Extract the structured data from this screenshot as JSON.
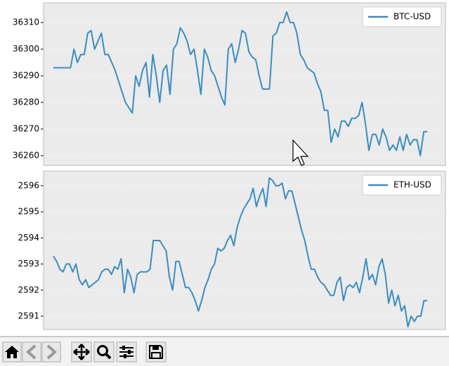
{
  "chart_data": [
    {
      "type": "line",
      "legend": "upper right",
      "ylim": [
        36256.3,
        36317.4
      ],
      "yticks": [
        36260,
        36270,
        36280,
        36290,
        36300,
        36310
      ],
      "series": [
        {
          "name": "BTC-USD",
          "color": "#3a8dc1",
          "values": [
            36293,
            36293,
            36293,
            36293,
            36293,
            36293,
            36300,
            36295,
            36298,
            36298,
            36306,
            36307,
            36300,
            36303,
            36306,
            36298,
            36298,
            36295,
            36292,
            36288,
            36284,
            36280,
            36278,
            36276,
            36290,
            36286,
            36292,
            36295,
            36282,
            36298,
            36290,
            36280,
            36292,
            36294,
            36283,
            36300,
            36302,
            36308,
            36306,
            36303,
            36298,
            36300,
            36292,
            36283,
            36300,
            36297,
            36292,
            36290,
            36286,
            36282,
            36279,
            36300,
            36302,
            36295,
            36300,
            36307,
            36306,
            36299,
            36297,
            36296,
            36290,
            36285,
            36285,
            36285,
            36305,
            36306,
            36310,
            36310,
            36314,
            36310,
            36310,
            36306,
            36298,
            36296,
            36293,
            36292,
            36291,
            36287,
            36284,
            36277,
            36277,
            36265,
            36270,
            36267,
            36273,
            36273,
            36271,
            36274,
            36274,
            36275,
            36280,
            36272,
            36262,
            36268,
            36268,
            36264,
            36270,
            36267,
            36262,
            36264,
            36262,
            36267,
            36262,
            36268,
            36264,
            36266,
            36266,
            36260,
            36269,
            36269
          ]
        }
      ]
    },
    {
      "type": "line",
      "legend": "upper right",
      "ylim": [
        2590.49,
        2596.56
      ],
      "yticks": [
        2591,
        2592,
        2593,
        2594,
        2595,
        2596
      ],
      "series": [
        {
          "name": "ETH-USD",
          "color": "#3a8dc1",
          "values": [
            2593.3,
            2593.1,
            2592.8,
            2592.7,
            2593.0,
            2593.0,
            2592.7,
            2593.0,
            2592.4,
            2592.2,
            2592.4,
            2592.1,
            2592.2,
            2592.3,
            2592.4,
            2592.7,
            2592.8,
            2592.8,
            2592.6,
            2592.9,
            2592.8,
            2593.2,
            2591.9,
            2592.8,
            2592.5,
            2591.9,
            2592.6,
            2592.7,
            2592.7,
            2592.7,
            2592.8,
            2593.9,
            2593.9,
            2593.9,
            2593.7,
            2593.5,
            2592.5,
            2592.0,
            2593.1,
            2593.1,
            2592.6,
            2592.1,
            2592.1,
            2591.9,
            2591.6,
            2591.2,
            2591.6,
            2592.1,
            2592.4,
            2592.8,
            2593.0,
            2593.6,
            2593.5,
            2593.6,
            2593.9,
            2594.1,
            2593.7,
            2594.4,
            2594.8,
            2595.1,
            2595.3,
            2595.5,
            2595.9,
            2595.2,
            2595.6,
            2595.9,
            2595.2,
            2596.3,
            2596.2,
            2596.0,
            2596.0,
            2596.1,
            2595.5,
            2595.8,
            2595.8,
            2595.3,
            2594.8,
            2594.3,
            2593.9,
            2593.3,
            2592.8,
            2592.8,
            2592.5,
            2592.3,
            2592.2,
            2592.0,
            2591.8,
            2591.8,
            2592.3,
            2592.5,
            2591.6,
            2592.1,
            2592.2,
            2592.1,
            2592.3,
            2591.9,
            2592.5,
            2593.2,
            2592.4,
            2592.6,
            2592.2,
            2592.9,
            2593.2,
            2592.6,
            2591.5,
            2592.0,
            2591.4,
            2591.8,
            2591.2,
            2591.4,
            2590.6,
            2591.0,
            2590.8,
            2591.0,
            2591.0,
            2591.6,
            2591.6
          ]
        }
      ]
    }
  ]
}
